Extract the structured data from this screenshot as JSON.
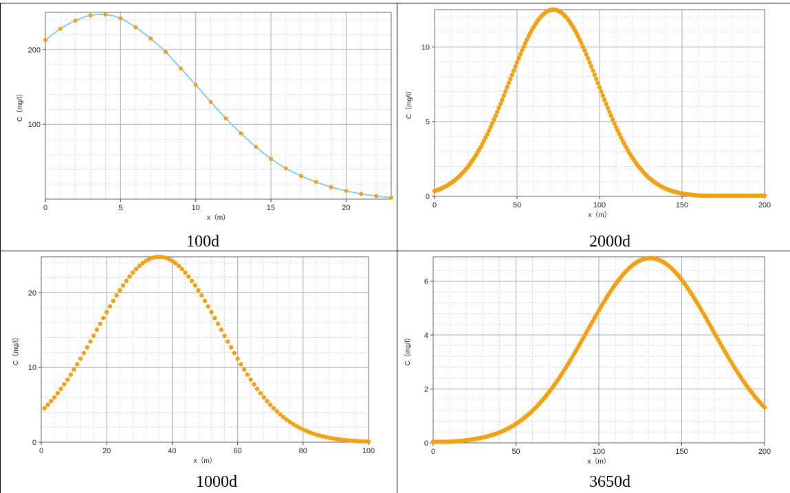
{
  "colors": {
    "marker": "#F5A00F",
    "line": "#87CEEB",
    "grid_major": "#A9A9A9",
    "grid_minor": "#DDDDDD"
  },
  "charts": [
    {
      "caption": "100d",
      "chart_data": {
        "type": "line",
        "xlabel": "x（m）",
        "ylabel": "C（mg/l）",
        "xlim": [
          0,
          23
        ],
        "ylim": [
          0,
          250
        ],
        "xticks": [
          0,
          5,
          10,
          15,
          20
        ],
        "yticks": [
          100,
          200
        ],
        "show_line": true,
        "grid": true,
        "series": [
          {
            "x": [
              0,
              1,
              2,
              3,
              4,
              5,
              6,
              7,
              8,
              9,
              10,
              11,
              12,
              13,
              14,
              15,
              16,
              17,
              18,
              19,
              20,
              21,
              22,
              23
            ],
            "y": [
              213,
              228,
              239,
              246,
              247,
              242,
              230,
              215,
              197,
              175,
              153,
              130,
              108,
              88,
              70,
              54,
              41,
              31,
              23,
              16,
              11,
              7,
              4,
              2
            ]
          }
        ]
      }
    },
    {
      "caption": "2000d",
      "chart_data": {
        "type": "scatter",
        "xlabel": "x（m）",
        "ylabel": "C（mg/l）",
        "xlim": [
          0,
          200
        ],
        "ylim": [
          0,
          12.5
        ],
        "xticks": [
          0,
          50,
          100,
          150,
          200
        ],
        "yticks": [
          0,
          5,
          10
        ],
        "show_line": false,
        "grid": true,
        "series": [
          {
            "model": "gauss_tail",
            "peak": 12.5,
            "center": 72,
            "sigma": 27,
            "x_start": 0,
            "x_end": 200,
            "x_step": 1
          }
        ]
      }
    },
    {
      "caption": "1000d",
      "chart_data": {
        "type": "scatter",
        "xlabel": "x（m）",
        "ylabel": "C（mg/l）",
        "xlim": [
          0,
          100
        ],
        "ylim": [
          0,
          24.8
        ],
        "xticks": [
          0,
          20,
          40,
          60,
          80,
          100
        ],
        "yticks": [
          0,
          10,
          20
        ],
        "show_line": false,
        "grid": true,
        "series": [
          {
            "model": "gauss",
            "peak": 24.8,
            "center": 36,
            "sigma": 19,
            "x_start": 1,
            "x_end": 100,
            "x_step": 1
          }
        ]
      }
    },
    {
      "caption": "3650d",
      "chart_data": {
        "type": "scatter",
        "xlabel": "x（m）",
        "ylabel": "C（mg/l）",
        "xlim": [
          0,
          200
        ],
        "ylim": [
          0,
          6.9
        ],
        "xticks": [
          0,
          50,
          100,
          150,
          200
        ],
        "yticks": [
          0,
          2,
          4,
          6
        ],
        "show_line": false,
        "grid": true,
        "series": [
          {
            "model": "gauss_floor",
            "peak": 6.85,
            "center": 131,
            "sigma": 38,
            "x_start": 0,
            "x_end": 200,
            "x_step": 1
          }
        ]
      }
    }
  ]
}
